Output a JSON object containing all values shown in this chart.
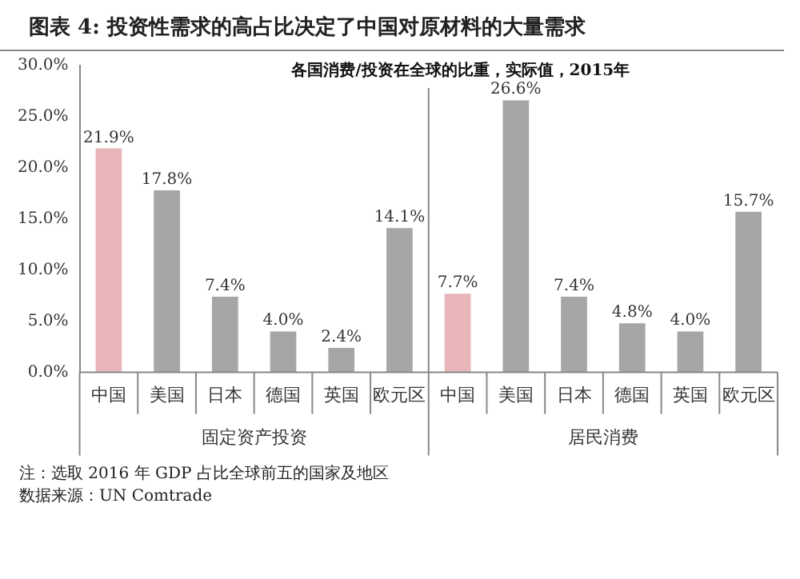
{
  "chart_data": {
    "type": "bar",
    "title": "图表 4:  投资性需求的高占比决定了中国对原材料的大量需求",
    "subtitle": "各国消费/投资在全球的比重，实际值，2015年",
    "categories": [
      "中国",
      "美国",
      "日本",
      "德国",
      "英国",
      "欧元区",
      "中国",
      "美国",
      "日本",
      "德国",
      "英国",
      "欧元区"
    ],
    "values": [
      21.9,
      17.8,
      7.4,
      4.0,
      2.4,
      14.1,
      7.7,
      26.6,
      7.4,
      4.8,
      4.0,
      15.7
    ],
    "colors": [
      "#e8b6b9",
      "#a6a6a6",
      "#a6a6a6",
      "#a6a6a6",
      "#a6a6a6",
      "#a6a6a6",
      "#e8b6b9",
      "#a6a6a6",
      "#a6a6a6",
      "#a6a6a6",
      "#a6a6a6",
      "#a6a6a6"
    ],
    "value_labels": [
      "21.9%",
      "17.8%",
      "7.4%",
      "4.0%",
      "2.4%",
      "14.1%",
      "7.7%",
      "26.6%",
      "7.4%",
      "4.8%",
      "4.0%",
      "15.7%"
    ],
    "ylim": [
      0,
      30
    ],
    "yticks": [
      {
        "value": 0,
        "label": "0.0%"
      },
      {
        "value": 5,
        "label": "5.0%"
      },
      {
        "value": 10,
        "label": "10.0%"
      },
      {
        "value": 15,
        "label": "15.0%"
      },
      {
        "value": 20,
        "label": "20.0%"
      },
      {
        "value": 25,
        "label": "25.0%"
      },
      {
        "value": 30,
        "label": "30.0%"
      }
    ],
    "annotations": [
      "固定资产投资",
      "居民消费",
      "注：选取 2016 年 GDP 占比全球前五的国家及地区",
      "数据来源：UN Comtrade"
    ],
    "grid": false,
    "legend": false
  }
}
